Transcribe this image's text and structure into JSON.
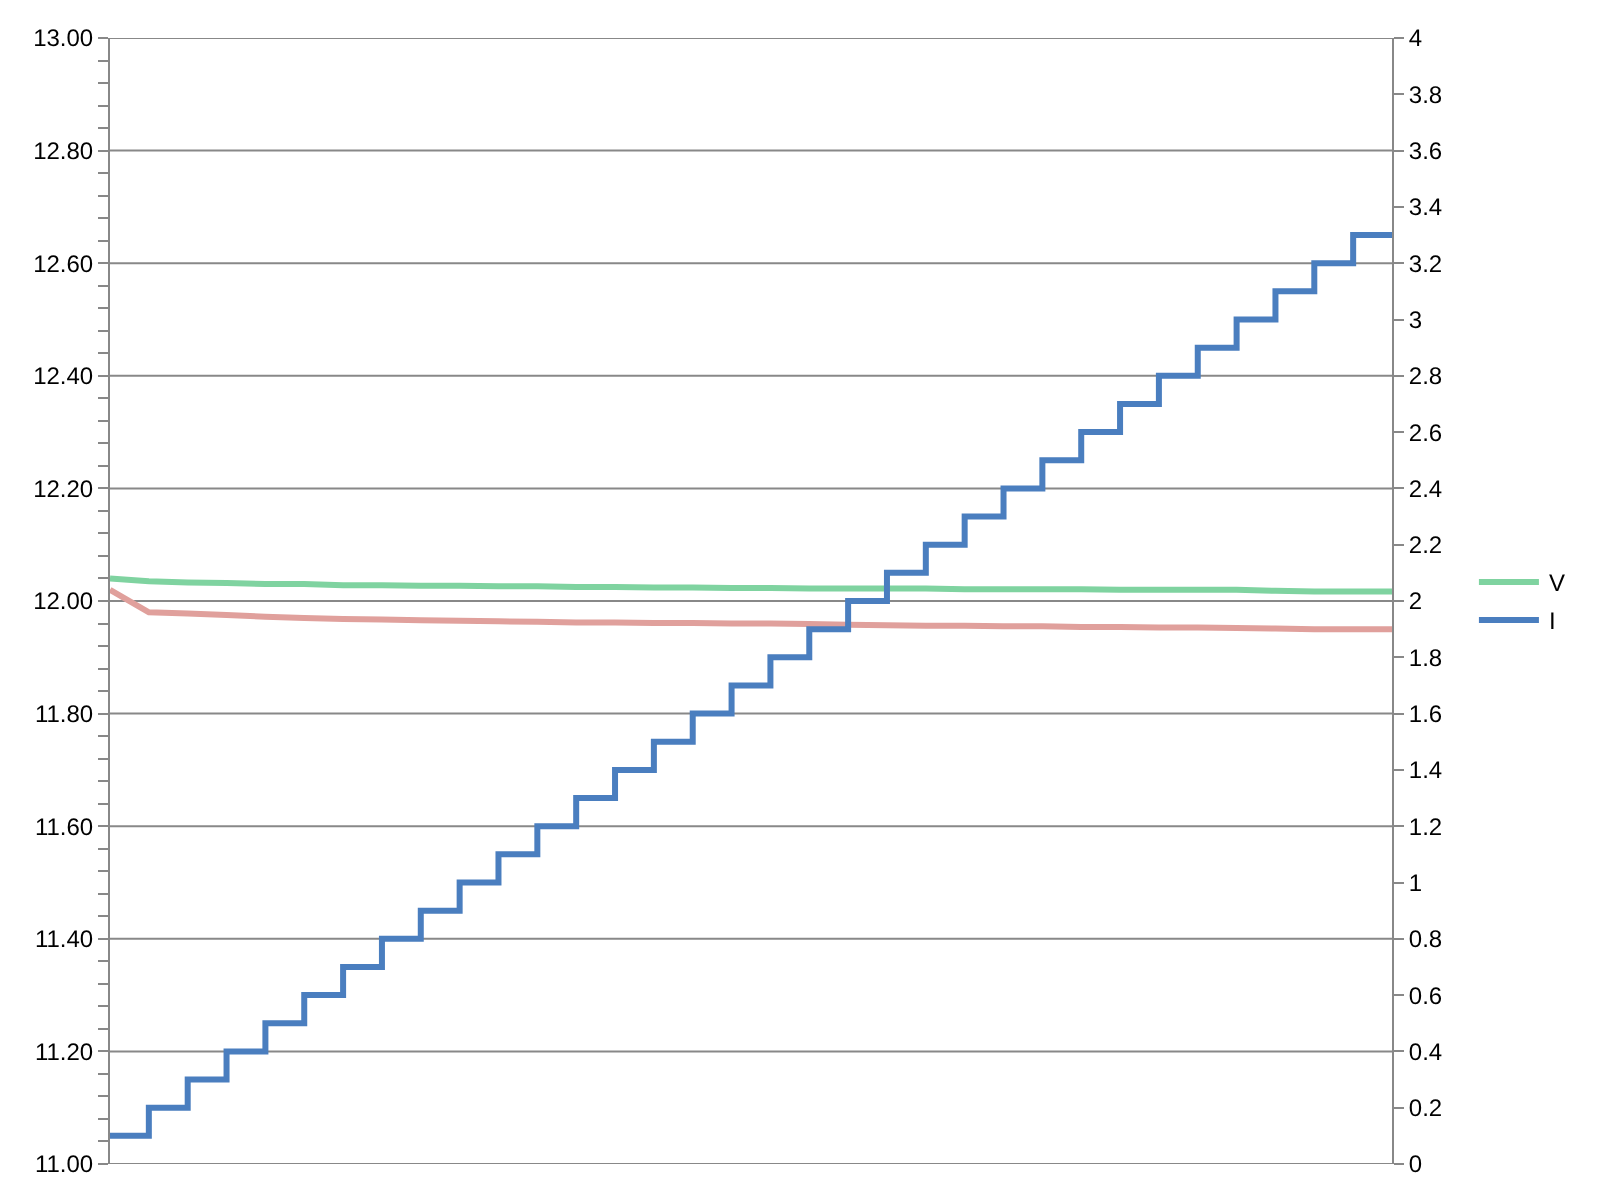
{
  "chart_data": {
    "type": "line",
    "categories": [
      null,
      null,
      null,
      null,
      null,
      null,
      null,
      null,
      null,
      null,
      null,
      null,
      null,
      null,
      null,
      null,
      null,
      null,
      null,
      null,
      null,
      null,
      null,
      null,
      null,
      null,
      null,
      null,
      null,
      null,
      null,
      null,
      null,
      null
    ],
    "series": [
      {
        "name": "V",
        "color": "#7fd3a0",
        "values": [
          12.04,
          12.035,
          12.033,
          12.032,
          12.03,
          12.03,
          12.028,
          12.028,
          12.027,
          12.027,
          12.026,
          12.026,
          12.025,
          12.025,
          12.024,
          12.024,
          12.023,
          12.023,
          12.022,
          12.022,
          12.022,
          12.022,
          12.021,
          12.021,
          12.021,
          12.021,
          12.02,
          12.02,
          12.02,
          12.02,
          12.018,
          12.017,
          12.017,
          12.017
        ]
      },
      {
        "color": "#e0a09c",
        "values": [
          12.02,
          11.98,
          11.978,
          11.975,
          11.972,
          11.97,
          11.968,
          11.967,
          11.966,
          11.965,
          11.964,
          11.963,
          11.962,
          11.962,
          11.961,
          11.961,
          11.96,
          11.96,
          11.959,
          11.958,
          11.957,
          11.956,
          11.956,
          11.955,
          11.955,
          11.954,
          11.954,
          11.953,
          11.953,
          11.952,
          11.951,
          11.95,
          11.95,
          11.95
        ]
      },
      {
        "name": "I",
        "type": "step",
        "axis": "y2",
        "color": "#4a7ebf",
        "values": [
          0.1,
          0.2,
          0.3,
          0.4,
          0.5,
          0.6,
          0.7,
          0.8,
          0.9,
          1.0,
          1.1,
          1.2,
          1.3,
          1.4,
          1.5,
          1.6,
          1.7,
          1.8,
          1.9,
          2.0,
          2.1,
          2.2,
          2.3,
          2.4,
          2.5,
          2.6,
          2.7,
          2.8,
          2.9,
          3.0,
          3.1,
          3.2,
          3.3,
          3.3
        ]
      }
    ],
    "ylim": [
      11.0,
      13.0
    ],
    "yticks": [
      {
        "value": 11.0,
        "label": "11.00"
      },
      {
        "value": 11.04,
        "label": null
      },
      {
        "value": 11.08,
        "label": null
      },
      {
        "value": 11.12,
        "label": null
      },
      {
        "value": 11.16,
        "label": null
      },
      {
        "value": 11.2,
        "label": "11.20"
      },
      {
        "value": 11.24,
        "label": null
      },
      {
        "value": 11.28,
        "label": null
      },
      {
        "value": 11.32,
        "label": null
      },
      {
        "value": 11.36,
        "label": null
      },
      {
        "value": 11.4,
        "label": "11.40"
      },
      {
        "value": 11.44,
        "label": null
      },
      {
        "value": 11.48,
        "label": null
      },
      {
        "value": 11.52,
        "label": null
      },
      {
        "value": 11.56,
        "label": null
      },
      {
        "value": 11.6,
        "label": "11.60"
      },
      {
        "value": 11.64,
        "label": null
      },
      {
        "value": 11.68,
        "label": null
      },
      {
        "value": 11.72,
        "label": null
      },
      {
        "value": 11.76,
        "label": null
      },
      {
        "value": 11.8,
        "label": "11.80"
      },
      {
        "value": 11.84,
        "label": null
      },
      {
        "value": 11.88,
        "label": null
      },
      {
        "value": 11.92,
        "label": null
      },
      {
        "value": 11.96,
        "label": null
      },
      {
        "value": 12.0,
        "label": "12.00"
      },
      {
        "value": 12.04,
        "label": null
      },
      {
        "value": 12.08,
        "label": null
      },
      {
        "value": 12.12,
        "label": null
      },
      {
        "value": 12.16,
        "label": null
      },
      {
        "value": 12.2,
        "label": "12.20"
      },
      {
        "value": 12.24,
        "label": null
      },
      {
        "value": 12.28,
        "label": null
      },
      {
        "value": 12.32,
        "label": null
      },
      {
        "value": 12.36,
        "label": null
      },
      {
        "value": 12.4,
        "label": "12.40"
      },
      {
        "value": 12.44,
        "label": null
      },
      {
        "value": 12.48,
        "label": null
      },
      {
        "value": 12.52,
        "label": null
      },
      {
        "value": 12.56,
        "label": null
      },
      {
        "value": 12.6,
        "label": "12.60"
      },
      {
        "value": 12.64,
        "label": null
      },
      {
        "value": 12.68,
        "label": null
      },
      {
        "value": 12.72,
        "label": null
      },
      {
        "value": 12.76,
        "label": null
      },
      {
        "value": 12.8,
        "label": "12.80"
      },
      {
        "value": 12.84,
        "label": null
      },
      {
        "value": 12.88,
        "label": null
      },
      {
        "value": 12.92,
        "label": null
      },
      {
        "value": 12.96,
        "label": null
      },
      {
        "value": 13.0,
        "label": "13.00"
      }
    ],
    "y2lim": [
      0,
      4
    ],
    "y2ticks": [
      0,
      0.2,
      0.4,
      0.6,
      0.8,
      1,
      1.2,
      1.4,
      1.6,
      1.8,
      2,
      2.2,
      2.4,
      2.6,
      2.8,
      3,
      3.2,
      3.4,
      3.6,
      3.8,
      4
    ],
    "tick_labels": "y",
    "grid": "y",
    "legend": "right"
  }
}
